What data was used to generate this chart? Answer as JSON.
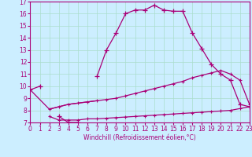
{
  "xlabel": "Windchill (Refroidissement éolien,°C)",
  "xlim": [
    0,
    23
  ],
  "ylim": [
    7,
    17
  ],
  "xticks": [
    0,
    1,
    2,
    3,
    4,
    5,
    6,
    7,
    8,
    9,
    10,
    11,
    12,
    13,
    14,
    15,
    16,
    17,
    18,
    19,
    20,
    21,
    22,
    23
  ],
  "yticks": [
    7,
    8,
    9,
    10,
    11,
    12,
    13,
    14,
    15,
    16,
    17
  ],
  "background_color": "#cceeff",
  "grid_color": "#aaddcc",
  "line_color": "#aa0077",
  "curve_segments": [
    {
      "x": [
        0,
        1
      ],
      "y": [
        9.7,
        10.0
      ]
    },
    {
      "x": [
        3,
        4,
        5
      ],
      "y": [
        7.5,
        7.0,
        7.0
      ]
    },
    {
      "x": [
        7,
        8,
        9,
        10,
        11,
        12,
        13,
        14,
        15,
        16,
        17,
        18,
        19,
        20,
        21,
        22,
        23
      ],
      "y": [
        10.8,
        13.0,
        14.4,
        16.0,
        16.3,
        16.3,
        16.7,
        16.3,
        16.2,
        16.2,
        14.4,
        13.1,
        11.8,
        11.0,
        10.5,
        8.5,
        8.3
      ]
    }
  ],
  "linear1": {
    "x": [
      2,
      3,
      4,
      5,
      6,
      7,
      8,
      9,
      10,
      11,
      12,
      13,
      14,
      15,
      16,
      17,
      18,
      19,
      20,
      21,
      22,
      23
    ],
    "y": [
      8.1,
      8.3,
      8.5,
      8.6,
      8.7,
      8.8,
      8.9,
      9.0,
      9.2,
      9.4,
      9.6,
      9.8,
      10.0,
      10.2,
      10.4,
      10.7,
      10.9,
      11.1,
      11.3,
      11.0,
      10.5,
      8.5
    ]
  },
  "linear2": {
    "x": [
      2,
      3,
      4,
      5,
      6,
      7,
      8,
      9,
      10,
      11,
      12,
      13,
      14,
      15,
      16,
      17,
      18,
      19,
      20,
      21,
      22,
      23
    ],
    "y": [
      7.5,
      7.2,
      7.2,
      7.2,
      7.3,
      7.3,
      7.35,
      7.4,
      7.45,
      7.5,
      7.55,
      7.6,
      7.65,
      7.7,
      7.75,
      7.8,
      7.85,
      7.9,
      7.95,
      8.0,
      8.15,
      8.3
    ]
  },
  "connector": {
    "x": [
      0,
      2,
      3,
      4,
      5,
      6,
      7
    ],
    "y": [
      9.7,
      8.1,
      8.3,
      8.5,
      8.6,
      8.7,
      8.8
    ]
  }
}
